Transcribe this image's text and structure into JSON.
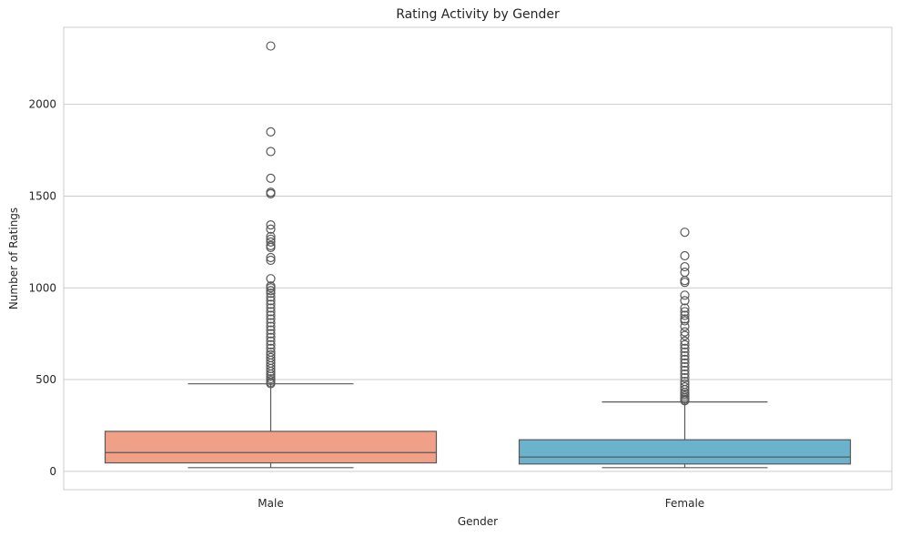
{
  "chart_data": {
    "type": "box",
    "title": "Rating Activity by Gender",
    "xlabel": "Gender",
    "ylabel": "Number of Ratings",
    "ylim": [
      -100,
      2420
    ],
    "yticks": [
      0,
      500,
      1000,
      1500,
      2000
    ],
    "grid": "horizontal",
    "categories": [
      "Male",
      "Female"
    ],
    "colors": [
      "#f0a086",
      "#6bb3cc"
    ],
    "line_color": "#595959",
    "boxes": [
      {
        "category": "Male",
        "whisker_low": 20,
        "q1": 46,
        "median": 102,
        "q3": 218,
        "whisker_high": 477,
        "outliers": [
          2318,
          1850,
          1743,
          1597,
          1521,
          1513,
          1343,
          1320,
          1280,
          1265,
          1250,
          1230,
          1220,
          1165,
          1150,
          1050,
          1010,
          1000,
          985,
          970,
          950,
          930,
          910,
          890,
          870,
          850,
          830,
          810,
          790,
          770,
          750,
          730,
          710,
          690,
          670,
          650,
          635,
          620,
          605,
          590,
          575,
          560,
          545,
          530,
          518,
          505,
          495,
          485,
          478
        ]
      },
      {
        "category": "Female",
        "whisker_low": 20,
        "q1": 40,
        "median": 78,
        "q3": 172,
        "whisker_high": 378,
        "outliers": [
          1303,
          1175,
          1115,
          1085,
          1040,
          1030,
          960,
          930,
          890,
          870,
          850,
          830,
          820,
          790,
          760,
          740,
          710,
          690,
          670,
          650,
          630,
          610,
          590,
          570,
          550,
          530,
          510,
          490,
          475,
          460,
          445,
          430,
          420,
          410,
          400,
          392,
          385
        ]
      }
    ]
  }
}
